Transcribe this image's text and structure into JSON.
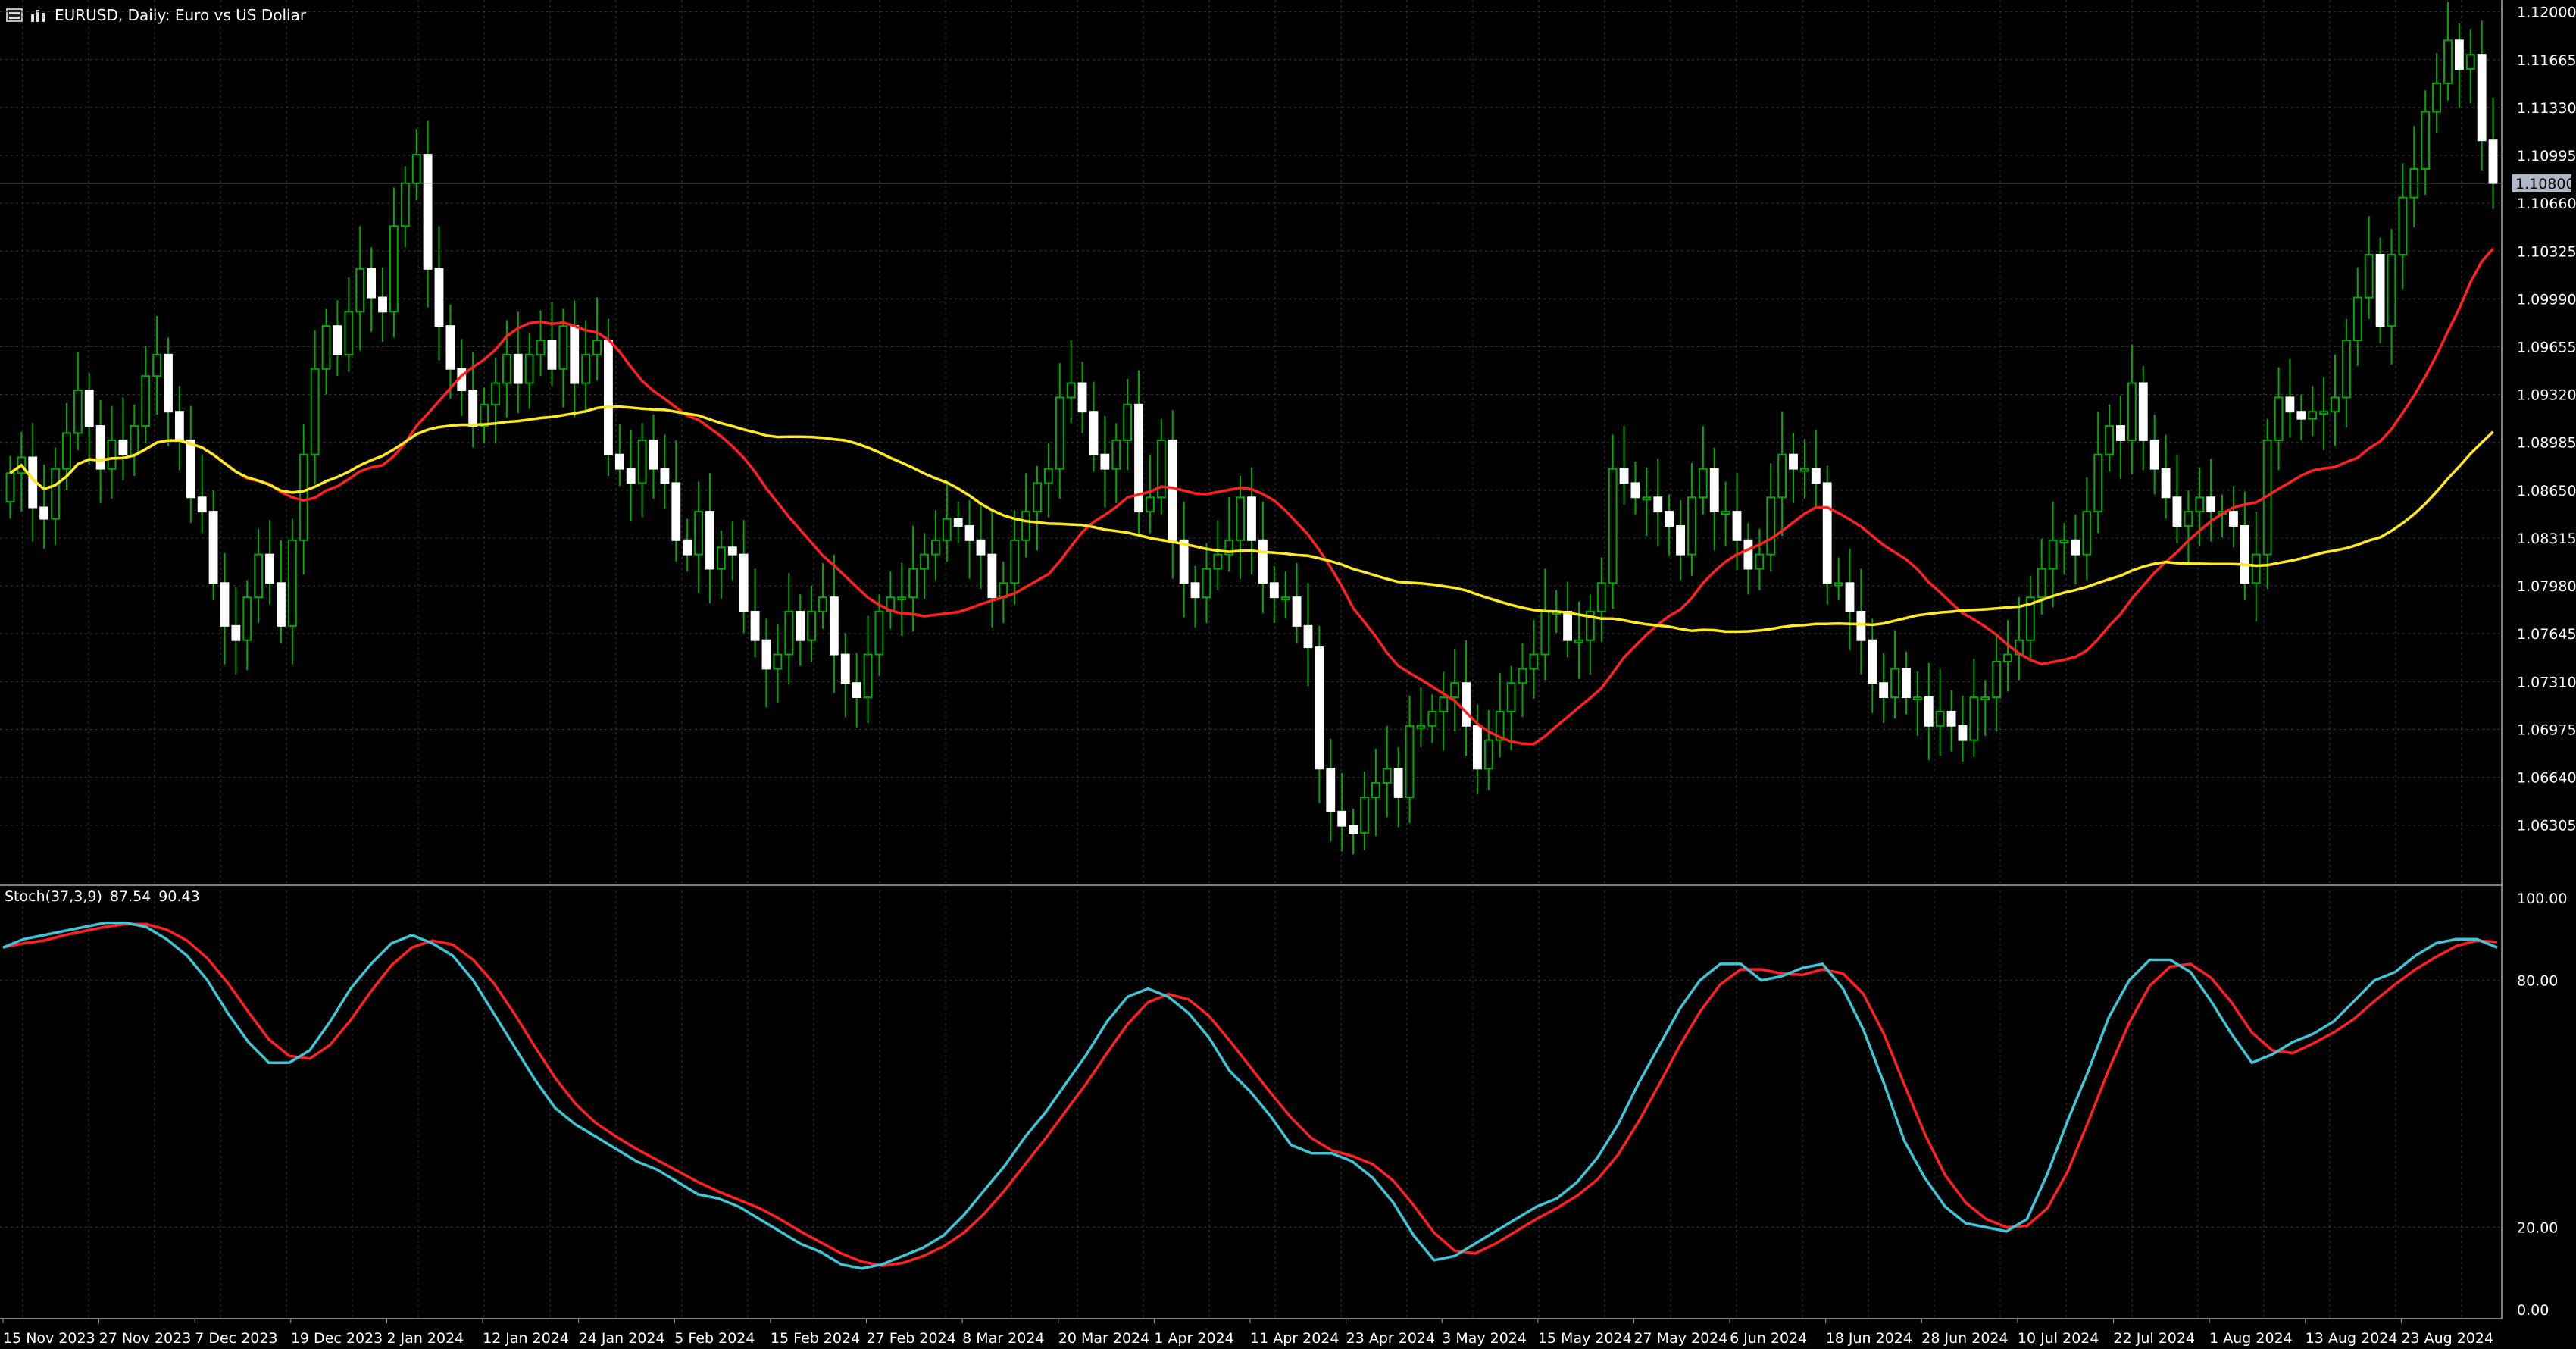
{
  "window": {
    "symbol_title": "EURUSD, Daily:  Euro vs US Dollar"
  },
  "indicator": {
    "name": "Stoch(37,3,9)",
    "main_value": "87.54",
    "signal_value": "90.43"
  },
  "colors": {
    "background": "#000000",
    "grid": "#3a3a3a",
    "bull_candle": "#ffffff",
    "bear_candle": "#ffffff",
    "wick": "#00aa00",
    "ma_fast": "#ff2020",
    "ma_slow": "#ffea20",
    "stoch_main": "#3ec6d6",
    "stoch_signal": "#ff2020",
    "current_price_label_bg": "#b0b8c8"
  },
  "chart_data": [
    {
      "type": "candlestick",
      "title": "EURUSD, Daily:  Euro vs US Dollar",
      "y_ticks": [
        "1.12000",
        "1.11665",
        "1.11330",
        "1.10995",
        "1.10660",
        "1.10325",
        "1.09990",
        "1.09655",
        "1.09320",
        "1.08985",
        "1.08650",
        "1.08315",
        "1.07980",
        "1.07645",
        "1.07310",
        "1.06975",
        "1.06640",
        "1.06305"
      ],
      "current_price": "1.10800",
      "ylim": [
        1.059,
        1.1203
      ],
      "x_ticks": [
        "15 Nov 2023",
        "27 Nov 2023",
        "7 Dec 2023",
        "19 Dec 2023",
        "2 Jan 2024",
        "12 Jan 2024",
        "24 Jan 2024",
        "5 Feb 2024",
        "15 Feb 2024",
        "27 Feb 2024",
        "8 Mar 2024",
        "20 Mar 2024",
        "1 Apr 2024",
        "11 Apr 2024",
        "23 Apr 2024",
        "3 May 2024",
        "15 May 2024",
        "27 May 2024",
        "6 Jun 2024",
        "18 Jun 2024",
        "28 Jun 2024",
        "10 Jul 2024",
        "22 Jul 2024",
        "1 Aug 2024",
        "13 Aug 2024",
        "23 Aug 2024"
      ],
      "close": [
        1.0877,
        1.0888,
        1.0853,
        1.0845,
        1.088,
        1.0905,
        1.0935,
        1.091,
        1.088,
        1.09,
        1.089,
        1.091,
        1.0945,
        1.096,
        1.092,
        1.09,
        1.086,
        1.085,
        1.08,
        1.077,
        1.076,
        1.079,
        1.082,
        1.08,
        1.077,
        1.083,
        1.089,
        1.095,
        1.098,
        1.096,
        1.099,
        1.102,
        1.1,
        1.099,
        1.105,
        1.108,
        1.11,
        1.102,
        1.098,
        1.095,
        1.0935,
        1.091,
        1.0925,
        1.094,
        1.096,
        1.094,
        1.096,
        1.097,
        1.095,
        1.098,
        1.094,
        1.096,
        1.097,
        1.089,
        1.088,
        1.087,
        1.09,
        1.088,
        1.087,
        1.083,
        1.082,
        1.085,
        1.081,
        1.0825,
        1.082,
        1.078,
        1.076,
        1.074,
        1.075,
        1.078,
        1.076,
        1.078,
        1.079,
        1.075,
        1.073,
        1.072,
        1.075,
        1.078,
        1.079,
        1.079,
        1.081,
        1.082,
        1.083,
        1.0845,
        1.084,
        1.083,
        1.082,
        1.079,
        1.08,
        1.083,
        1.085,
        1.087,
        1.088,
        1.093,
        1.094,
        1.092,
        1.089,
        1.088,
        1.09,
        1.0925,
        1.085,
        1.086,
        1.09,
        1.083,
        1.08,
        1.079,
        1.081,
        1.082,
        1.083,
        1.086,
        1.083,
        1.08,
        1.079,
        1.079,
        1.077,
        1.0755,
        1.067,
        1.064,
        1.063,
        1.0625,
        1.065,
        1.066,
        1.067,
        1.065,
        1.07,
        1.07,
        1.071,
        1.072,
        1.073,
        1.07,
        1.067,
        1.069,
        1.071,
        1.073,
        1.074,
        1.075,
        1.078,
        1.078,
        1.076,
        1.076,
        1.078,
        1.08,
        1.088,
        1.087,
        1.086,
        1.086,
        1.085,
        1.084,
        1.082,
        1.086,
        1.088,
        1.085,
        1.085,
        1.083,
        1.081,
        1.082,
        1.086,
        1.089,
        1.088,
        1.088,
        1.087,
        1.08,
        1.08,
        1.078,
        1.076,
        1.073,
        1.072,
        1.074,
        1.072,
        1.072,
        1.07,
        1.071,
        1.07,
        1.069,
        1.072,
        1.072,
        1.0745,
        1.075,
        1.076,
        1.079,
        1.081,
        1.083,
        1.083,
        1.082,
        1.085,
        1.089,
        1.091,
        1.09,
        1.094,
        1.09,
        1.088,
        1.086,
        1.084,
        1.085,
        1.086,
        1.085,
        1.085,
        1.084,
        1.08,
        1.082,
        1.09,
        1.093,
        1.092,
        1.0915,
        1.092,
        1.092,
        1.093,
        1.097,
        1.1,
        1.103,
        1.098,
        1.103,
        1.107,
        1.109,
        1.113,
        1.115,
        1.118,
        1.116,
        1.117,
        1.111,
        1.108
      ]
    },
    {
      "type": "line",
      "name": "Stoch(37,3,9)",
      "y_ticks": [
        "100.00",
        "80.00",
        "20.00",
        "0.00"
      ],
      "ylim": [
        0,
        100
      ],
      "main": [
        88,
        90,
        91,
        92,
        93,
        94,
        94,
        93,
        90,
        86,
        80,
        72,
        65,
        60,
        60,
        63,
        70,
        78,
        84,
        89,
        91,
        89,
        86,
        80,
        72,
        64,
        56,
        49,
        45,
        42,
        39,
        36,
        34,
        31,
        28,
        27,
        25,
        22,
        19,
        16,
        14,
        11,
        10,
        11,
        13,
        15,
        18,
        23,
        29,
        35,
        42,
        48,
        55,
        62,
        70,
        76,
        78,
        76,
        72,
        66,
        58,
        53,
        47,
        40,
        38,
        38,
        36,
        32,
        26,
        18,
        12,
        13,
        16,
        19,
        22,
        25,
        27,
        31,
        37,
        45,
        55,
        64,
        73,
        80,
        84,
        84,
        80,
        81,
        83,
        84,
        78,
        68,
        55,
        41,
        32,
        25,
        21,
        20,
        19,
        22,
        33,
        46,
        58,
        71,
        80,
        85,
        85,
        82,
        75,
        67,
        60,
        62,
        65,
        67,
        70,
        75,
        80,
        82,
        86,
        89,
        90,
        90,
        88
      ]
    }
  ]
}
